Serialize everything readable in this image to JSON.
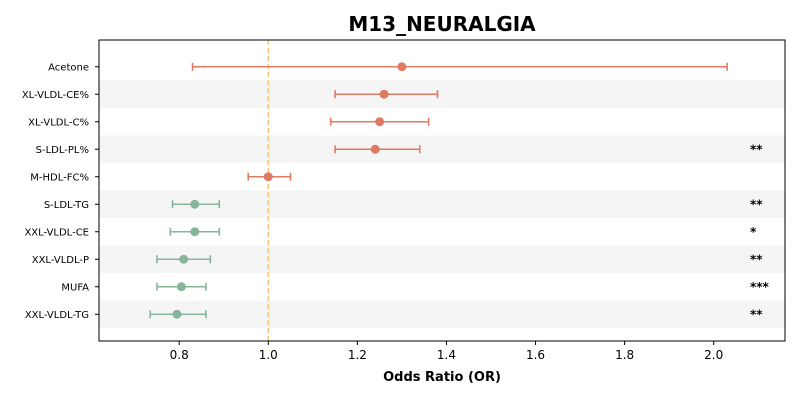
{
  "chart_data": {
    "type": "forest",
    "title": "M13_NEURALGIA",
    "xlabel": "Odds Ratio (OR)",
    "xlim": [
      0.62,
      2.16
    ],
    "xticks": [
      0.8,
      1.0,
      1.2,
      1.4,
      1.6,
      1.8,
      2.0
    ],
    "xtick_labels": [
      "0.8",
      "1.0",
      "1.2",
      "1.4",
      "1.6",
      "1.8",
      "2.0"
    ],
    "reference_line": 1.0,
    "reference_color": "#f5c77e",
    "colors": {
      "positive": "#e07b63",
      "negative": "#86b59c"
    },
    "row_band_color": "#f5f5f5",
    "items": [
      {
        "label": "Acetone",
        "or": 1.3,
        "lo": 0.83,
        "hi": 2.03,
        "sig": ""
      },
      {
        "label": "XL-VLDL-CE%",
        "or": 1.26,
        "lo": 1.15,
        "hi": 1.38,
        "sig": ""
      },
      {
        "label": "XL-VLDL-C%",
        "or": 1.25,
        "lo": 1.14,
        "hi": 1.36,
        "sig": ""
      },
      {
        "label": "S-LDL-PL%",
        "or": 1.24,
        "lo": 1.15,
        "hi": 1.34,
        "sig": "**"
      },
      {
        "label": "M-HDL-FC%",
        "or": 1.0,
        "lo": 0.955,
        "hi": 1.05,
        "sig": ""
      },
      {
        "label": "S-LDL-TG",
        "or": 0.835,
        "lo": 0.785,
        "hi": 0.89,
        "sig": "**"
      },
      {
        "label": "XXL-VLDL-CE",
        "or": 0.835,
        "lo": 0.78,
        "hi": 0.89,
        "sig": "*"
      },
      {
        "label": "XXL-VLDL-P",
        "or": 0.81,
        "lo": 0.75,
        "hi": 0.87,
        "sig": "**"
      },
      {
        "label": "MUFA",
        "or": 0.805,
        "lo": 0.75,
        "hi": 0.86,
        "sig": "***"
      },
      {
        "label": "XXL-VLDL-TG",
        "or": 0.795,
        "lo": 0.735,
        "hi": 0.86,
        "sig": "**"
      }
    ]
  }
}
